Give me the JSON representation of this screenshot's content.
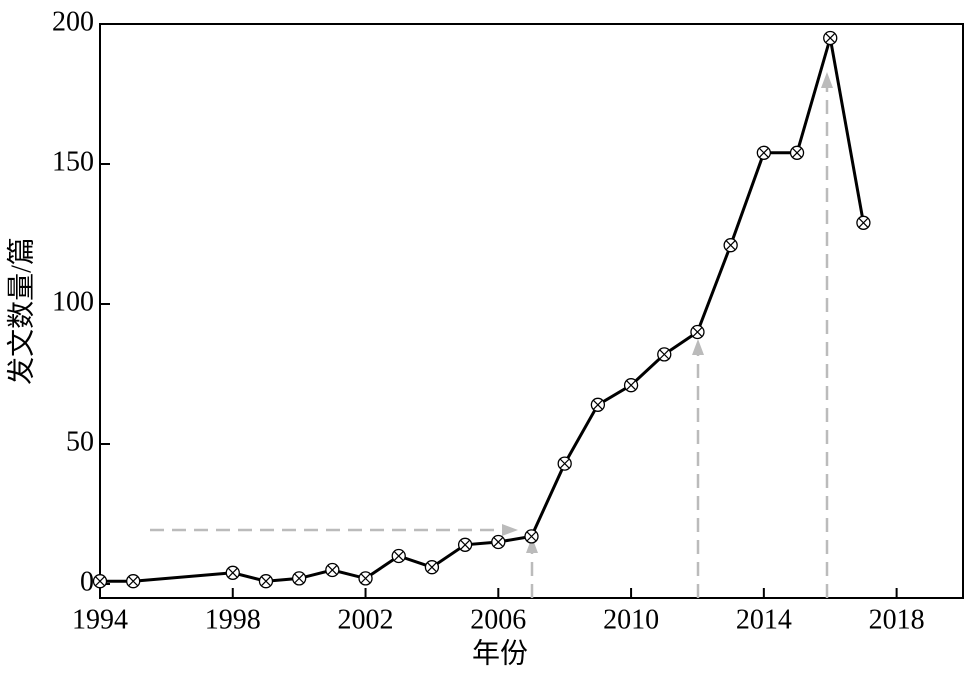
{
  "chart_data": {
    "type": "line",
    "x_label": "年份",
    "y_label": "发文数量/篇",
    "x": [
      1994,
      1995,
      1998,
      1999,
      2000,
      2001,
      2002,
      2003,
      2004,
      2005,
      2006,
      2007,
      2008,
      2009,
      2010,
      2011,
      2012,
      2013,
      2014,
      2015,
      2016,
      2017
    ],
    "series": [
      {
        "color": "#000000",
        "values": [
          1,
          1,
          4,
          1,
          2,
          5,
          2,
          10,
          6,
          14,
          15,
          17,
          43,
          64,
          71,
          82,
          90,
          121,
          154,
          154,
          195,
          129
        ]
      }
    ],
    "xlim": [
      1994,
      2020
    ],
    "xticks": [
      1994,
      1998,
      2002,
      2006,
      2010,
      2014,
      2018
    ],
    "ylim": [
      -5,
      200
    ],
    "yticks": [
      0,
      50,
      100,
      150,
      200
    ]
  }
}
